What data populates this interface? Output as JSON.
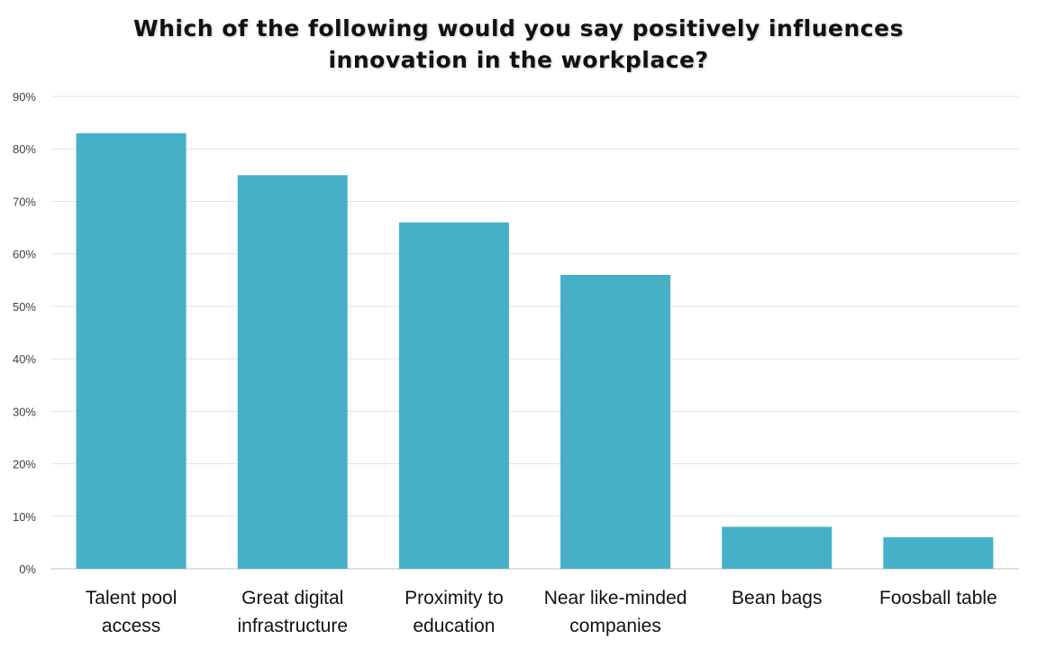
{
  "chart_data": {
    "type": "bar",
    "title": "Which of the following would you say positively influences\ninnovation in the workplace?",
    "categories": [
      "Talent pool\naccess",
      "Great digital\ninfrastructure",
      "Proximity to\neducation",
      "Near like-minded\ncompanies",
      "Bean bags",
      "Foosball table"
    ],
    "values": [
      83,
      75,
      66,
      56,
      8,
      6
    ],
    "ylim": [
      0,
      90
    ],
    "yticks": [
      0,
      10,
      20,
      30,
      40,
      50,
      60,
      70,
      80,
      90
    ],
    "ytick_format": "%",
    "grid": true,
    "bar_color": "#45B0C8"
  }
}
